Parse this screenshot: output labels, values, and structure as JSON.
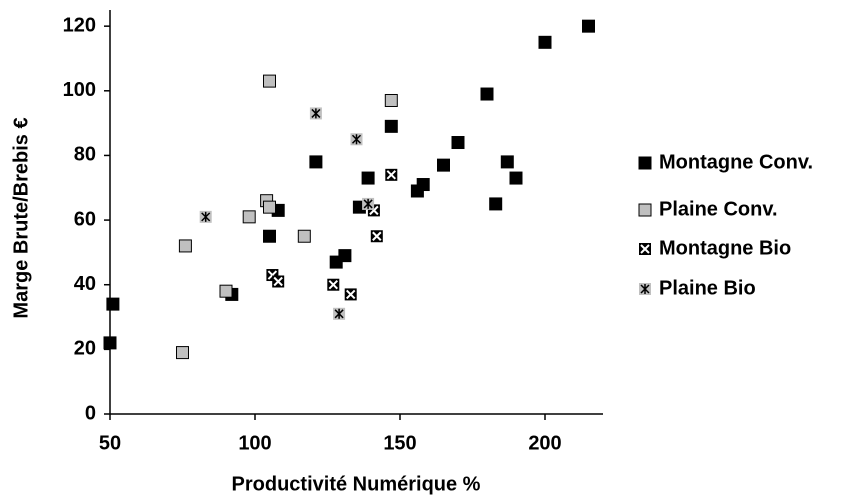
{
  "chart_data": {
    "type": "scatter",
    "x_label": "Productivité Numérique %",
    "y_label": "Marge Brute/Brebis €",
    "xlim": [
      50,
      220
    ],
    "xticks": [
      50,
      100,
      150,
      200
    ],
    "ylim": [
      0,
      125
    ],
    "yticks": [
      0,
      20,
      40,
      60,
      80,
      100,
      120
    ],
    "legend": "right",
    "series": [
      {
        "name": "Montagne Conv.",
        "color": "#000000",
        "marker": "square",
        "x": [
          50,
          51,
          92,
          105,
          108,
          121,
          128,
          131,
          136,
          139,
          147,
          156,
          158,
          165,
          170,
          180,
          183,
          187,
          190,
          200,
          215
        ],
        "values": [
          22,
          34,
          37,
          55,
          63,
          78,
          47,
          49,
          64,
          73,
          89,
          69,
          71,
          77,
          84,
          99,
          65,
          78,
          73,
          115,
          120
        ]
      },
      {
        "name": "Plaine Conv.",
        "color": "#c0c0c0",
        "marker": "square",
        "x": [
          75,
          76,
          90,
          98,
          104,
          105,
          105,
          117,
          147
        ],
        "values": [
          19,
          52,
          38,
          61,
          66,
          103,
          64,
          55,
          97
        ]
      },
      {
        "name": "Montagne Bio",
        "color": "#000000",
        "marker": "x-box",
        "x": [
          106,
          108,
          127,
          133,
          141,
          142,
          147
        ],
        "values": [
          43,
          41,
          40,
          37,
          63,
          55,
          74
        ]
      },
      {
        "name": "Plaine Bio",
        "color": "#c0c0c0",
        "marker": "asterisk",
        "x": [
          83,
          121,
          129,
          135,
          139
        ],
        "values": [
          61,
          93,
          31,
          85,
          65
        ]
      }
    ]
  }
}
